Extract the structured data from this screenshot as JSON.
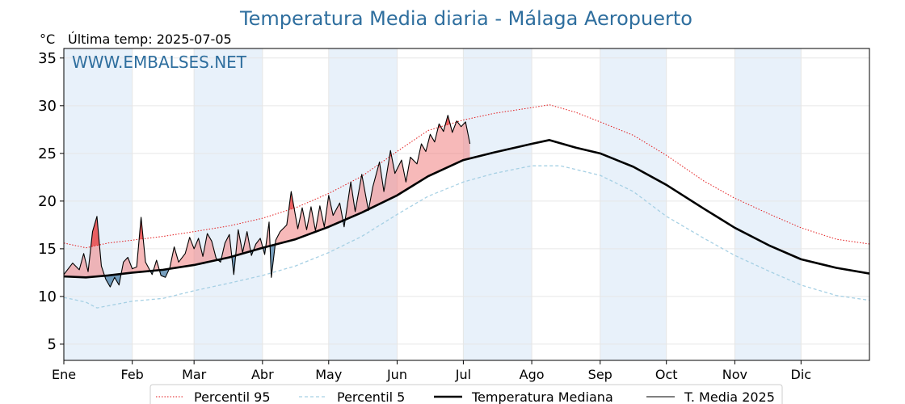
{
  "colors": {
    "title": "#2e6e9e",
    "p95": "#e31a1c",
    "p5": "#a6d0e4",
    "median": "#000000",
    "current": "#000000",
    "above_fill": "#f08080",
    "below_fill": "#4a7fa8",
    "band": "#e8f1fa",
    "grid": "#e6e6e6"
  },
  "chart_data": {
    "type": "line",
    "title": "Temperatura Media diaria - Málaga Aeropuerto",
    "unit_label": "°C",
    "last_temp_label": "Última temp: 2025-07-05",
    "watermark": "WWW.EMBALSES.NET",
    "x_range": [
      0,
      365
    ],
    "ylim": [
      3.3,
      36
    ],
    "yticks": [
      5,
      10,
      15,
      20,
      25,
      30,
      35
    ],
    "grid": true,
    "legend_position": "bottom-center",
    "months": [
      {
        "label": "Ene",
        "day": 0
      },
      {
        "label": "Feb",
        "day": 31
      },
      {
        "label": "Mar",
        "day": 59
      },
      {
        "label": "Abr",
        "day": 90
      },
      {
        "label": "May",
        "day": 120
      },
      {
        "label": "Jun",
        "day": 151
      },
      {
        "label": "Jul",
        "day": 181
      },
      {
        "label": "Ago",
        "day": 212
      },
      {
        "label": "Sep",
        "day": 243
      },
      {
        "label": "Oct",
        "day": 273
      },
      {
        "label": "Nov",
        "day": 304
      },
      {
        "label": "Dic",
        "day": 334
      }
    ],
    "shaded_months": [
      0,
      2,
      4,
      6,
      8,
      10
    ],
    "series": [
      {
        "name": "Percentil 95",
        "style": "dotted",
        "points": [
          [
            0,
            15.6
          ],
          [
            10,
            15.1
          ],
          [
            20,
            15.6
          ],
          [
            31,
            15.9
          ],
          [
            45,
            16.3
          ],
          [
            59,
            16.8
          ],
          [
            75,
            17.4
          ],
          [
            90,
            18.2
          ],
          [
            105,
            19.3
          ],
          [
            120,
            20.8
          ],
          [
            135,
            22.6
          ],
          [
            151,
            25.2
          ],
          [
            165,
            27.4
          ],
          [
            181,
            28.5
          ],
          [
            195,
            29.2
          ],
          [
            212,
            29.8
          ],
          [
            220,
            30.1
          ],
          [
            232,
            29.3
          ],
          [
            243,
            28.3
          ],
          [
            258,
            26.9
          ],
          [
            273,
            24.8
          ],
          [
            290,
            22.1
          ],
          [
            304,
            20.3
          ],
          [
            320,
            18.6
          ],
          [
            334,
            17.2
          ],
          [
            350,
            16.0
          ],
          [
            365,
            15.5
          ]
        ]
      },
      {
        "name": "Percentil 5",
        "style": "dashed",
        "points": [
          [
            0,
            9.9
          ],
          [
            10,
            9.4
          ],
          [
            15,
            8.8
          ],
          [
            31,
            9.5
          ],
          [
            45,
            9.8
          ],
          [
            59,
            10.6
          ],
          [
            75,
            11.4
          ],
          [
            90,
            12.2
          ],
          [
            105,
            13.2
          ],
          [
            120,
            14.6
          ],
          [
            135,
            16.3
          ],
          [
            151,
            18.6
          ],
          [
            165,
            20.5
          ],
          [
            181,
            22.0
          ],
          [
            195,
            22.9
          ],
          [
            212,
            23.7
          ],
          [
            225,
            23.7
          ],
          [
            243,
            22.7
          ],
          [
            258,
            21.0
          ],
          [
            273,
            18.4
          ],
          [
            290,
            16.1
          ],
          [
            304,
            14.3
          ],
          [
            320,
            12.6
          ],
          [
            334,
            11.2
          ],
          [
            350,
            10.1
          ],
          [
            365,
            9.6
          ]
        ]
      },
      {
        "name": "Temperatura Mediana",
        "style": "solid-bold",
        "points": [
          [
            0,
            12.1
          ],
          [
            10,
            12.0
          ],
          [
            20,
            12.2
          ],
          [
            31,
            12.5
          ],
          [
            45,
            12.8
          ],
          [
            59,
            13.3
          ],
          [
            75,
            14.1
          ],
          [
            90,
            15.1
          ],
          [
            105,
            16.0
          ],
          [
            120,
            17.3
          ],
          [
            135,
            18.8
          ],
          [
            151,
            20.6
          ],
          [
            165,
            22.6
          ],
          [
            181,
            24.3
          ],
          [
            195,
            25.1
          ],
          [
            212,
            26.0
          ],
          [
            220,
            26.4
          ],
          [
            232,
            25.6
          ],
          [
            243,
            25.0
          ],
          [
            258,
            23.6
          ],
          [
            273,
            21.7
          ],
          [
            290,
            19.2
          ],
          [
            304,
            17.2
          ],
          [
            320,
            15.3
          ],
          [
            334,
            13.9
          ],
          [
            350,
            13.0
          ],
          [
            365,
            12.4
          ]
        ]
      },
      {
        "name": "T. Media 2025",
        "style": "solid-thin",
        "points": [
          [
            0,
            12.3
          ],
          [
            4,
            13.5
          ],
          [
            7,
            12.8
          ],
          [
            9,
            14.5
          ],
          [
            11,
            12.6
          ],
          [
            13,
            16.8
          ],
          [
            15,
            18.4
          ],
          [
            17,
            13.2
          ],
          [
            19,
            11.8
          ],
          [
            21,
            11.0
          ],
          [
            23,
            12.0
          ],
          [
            25,
            11.2
          ],
          [
            27,
            13.6
          ],
          [
            29,
            14.1
          ],
          [
            31,
            12.9
          ],
          [
            33,
            13.1
          ],
          [
            35,
            18.3
          ],
          [
            37,
            13.6
          ],
          [
            40,
            12.3
          ],
          [
            42,
            13.8
          ],
          [
            44,
            12.2
          ],
          [
            46,
            12.0
          ],
          [
            48,
            13.0
          ],
          [
            50,
            15.2
          ],
          [
            52,
            13.6
          ],
          [
            55,
            14.5
          ],
          [
            57,
            16.2
          ],
          [
            59,
            15.0
          ],
          [
            61,
            16.1
          ],
          [
            63,
            14.2
          ],
          [
            65,
            16.6
          ],
          [
            67,
            15.8
          ],
          [
            69,
            14.0
          ],
          [
            71,
            13.6
          ],
          [
            73,
            15.6
          ],
          [
            75,
            16.5
          ],
          [
            77,
            12.3
          ],
          [
            79,
            17.0
          ],
          [
            81,
            14.6
          ],
          [
            83,
            16.8
          ],
          [
            85,
            14.3
          ],
          [
            87,
            15.5
          ],
          [
            89,
            16.1
          ],
          [
            91,
            14.4
          ],
          [
            93,
            17.8
          ],
          [
            94,
            12.0
          ],
          [
            96,
            15.9
          ],
          [
            98,
            16.8
          ],
          [
            101,
            17.5
          ],
          [
            103,
            21.0
          ],
          [
            106,
            17.1
          ],
          [
            108,
            19.3
          ],
          [
            110,
            17.0
          ],
          [
            112,
            19.4
          ],
          [
            114,
            16.9
          ],
          [
            116,
            19.5
          ],
          [
            118,
            17.3
          ],
          [
            120,
            20.6
          ],
          [
            122,
            18.5
          ],
          [
            125,
            19.8
          ],
          [
            127,
            17.3
          ],
          [
            130,
            22.0
          ],
          [
            132,
            18.9
          ],
          [
            135,
            22.8
          ],
          [
            138,
            19.0
          ],
          [
            140,
            21.5
          ],
          [
            143,
            24.1
          ],
          [
            145,
            21.0
          ],
          [
            148,
            25.3
          ],
          [
            150,
            22.9
          ],
          [
            153,
            24.3
          ],
          [
            155,
            22.0
          ],
          [
            157,
            24.6
          ],
          [
            160,
            23.9
          ],
          [
            162,
            26.0
          ],
          [
            164,
            25.2
          ],
          [
            166,
            27.0
          ],
          [
            168,
            26.2
          ],
          [
            170,
            28.1
          ],
          [
            172,
            27.3
          ],
          [
            174,
            29.0
          ],
          [
            176,
            27.2
          ],
          [
            178,
            28.4
          ],
          [
            180,
            27.8
          ],
          [
            182,
            28.3
          ],
          [
            184,
            26.0
          ]
        ]
      }
    ],
    "legend": [
      "Percentil 95",
      "Percentil 5",
      "Temperatura Mediana",
      "T. Media 2025"
    ]
  }
}
